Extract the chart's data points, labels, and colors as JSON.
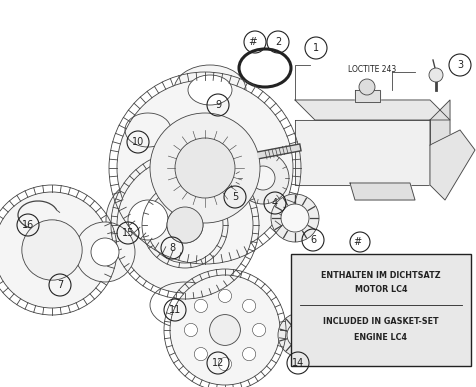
{
  "bg_color": "#ffffff",
  "box_fill": "#e8e8e8",
  "box_text_line1": "ENTHALTEN IM DICHTSATZ",
  "box_text_line2": "MOTOR LC4",
  "box_text_line3": "INCLUDED IN GASKET-SET",
  "box_text_line4": "ENGINE LC4",
  "loctite_label": "LOCTITE 243",
  "line_color": "#444444",
  "label_color": "#222222"
}
